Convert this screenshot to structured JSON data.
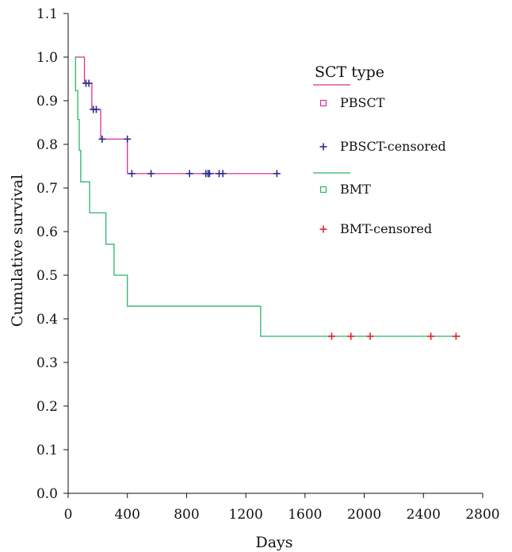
{
  "chart_data": {
    "type": "line",
    "subtype": "kaplan-meier step",
    "xlabel": "Days",
    "ylabel": "Cumulative survival",
    "xlim": [
      0,
      2800
    ],
    "ylim": [
      0,
      1.1
    ],
    "x_ticks": [
      "0",
      "400",
      "800",
      "1200",
      "1600",
      "2000",
      "2400",
      "2800"
    ],
    "y_ticks": [
      "0.0",
      "0.1",
      "0.2",
      "0.3",
      "0.4",
      "0.5",
      "0.6",
      "0.7",
      "0.8",
      "0.9",
      "1.0",
      "1.1"
    ],
    "grid": false,
    "legend": {
      "title": "SCT type",
      "position": "top-right",
      "entries": [
        "PBSCT",
        "PBSCT-censored",
        "BMT",
        "BMT-censored"
      ]
    },
    "colors": {
      "PBSCT": "#d6338a",
      "PBSCT-censored": "#2b2b8f",
      "BMT": "#2bb56b",
      "BMT-censored": "#e8202a"
    },
    "series": [
      {
        "name": "PBSCT",
        "steps": [
          [
            50,
            1.0
          ],
          [
            110,
            0.94
          ],
          [
            160,
            0.88
          ],
          [
            220,
            0.812
          ],
          [
            400,
            0.733
          ],
          [
            1400,
            0.733
          ]
        ],
        "censored": [
          [
            120,
            0.94
          ],
          [
            140,
            0.94
          ],
          [
            170,
            0.88
          ],
          [
            190,
            0.88
          ],
          [
            230,
            0.812
          ],
          [
            400,
            0.812
          ],
          [
            430,
            0.733
          ],
          [
            560,
            0.733
          ],
          [
            820,
            0.733
          ],
          [
            930,
            0.733
          ],
          [
            945,
            0.733
          ],
          [
            955,
            0.733
          ],
          [
            1020,
            0.733
          ],
          [
            1045,
            0.733
          ],
          [
            1410,
            0.733
          ]
        ]
      },
      {
        "name": "BMT",
        "steps": [
          [
            45,
            1.0
          ],
          [
            50,
            0.923
          ],
          [
            65,
            0.857
          ],
          [
            75,
            0.786
          ],
          [
            85,
            0.714
          ],
          [
            145,
            0.643
          ],
          [
            255,
            0.571
          ],
          [
            310,
            0.5
          ],
          [
            400,
            0.429
          ],
          [
            1300,
            0.36
          ],
          [
            2650,
            0.36
          ]
        ],
        "censored": [
          [
            1780,
            0.36
          ],
          [
            1910,
            0.36
          ],
          [
            2040,
            0.36
          ],
          [
            2450,
            0.36
          ],
          [
            2620,
            0.36
          ]
        ]
      }
    ]
  }
}
